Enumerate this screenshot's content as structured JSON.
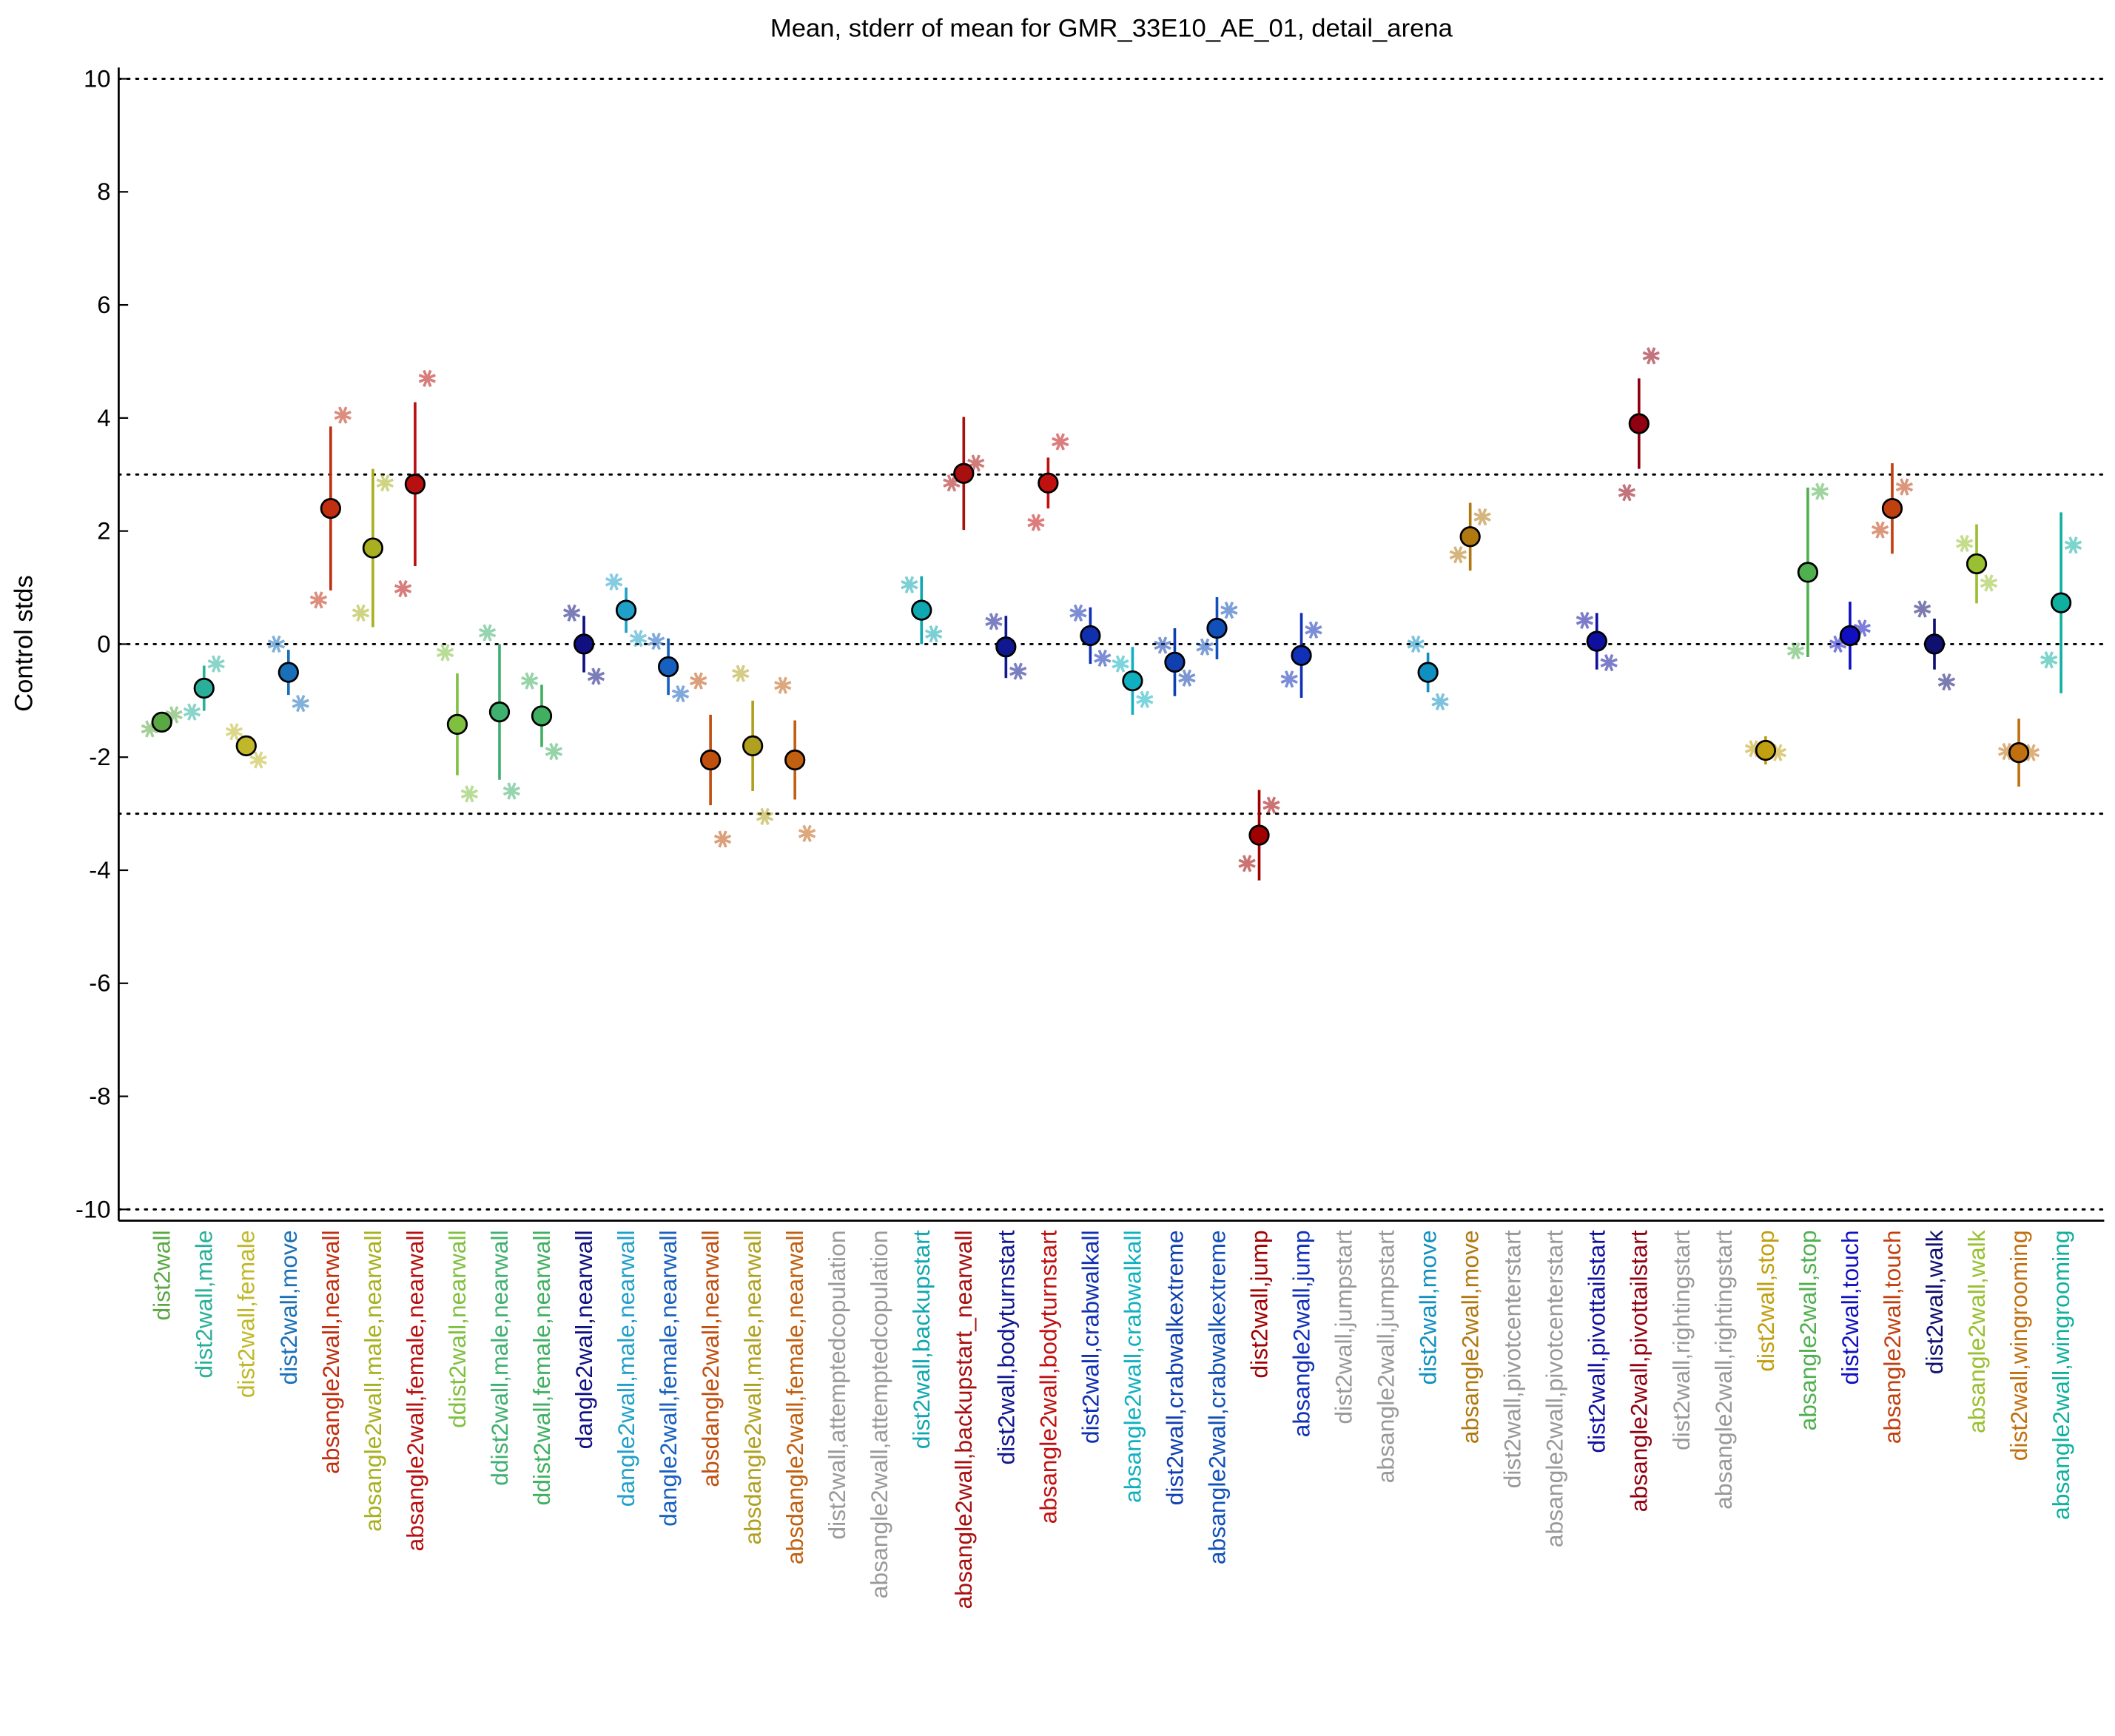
{
  "chart_data": {
    "type": "errorbar",
    "title": "Mean, stderr of mean for GMR_33E10_AE_01, detail_arena",
    "ylabel": "Control stds",
    "categories": [
      "dist2wall",
      "dist2wall,male",
      "dist2wall,female",
      "dist2wall,move",
      "absangle2wall,nearwall",
      "absangle2wall,male,nearwall",
      "absangle2wall,female,nearwall",
      "ddist2wall,nearwall",
      "ddist2wall,male,nearwall",
      "ddist2wall,female,nearwall",
      "dangle2wall,nearwall",
      "dangle2wall,male,nearwall",
      "dangle2wall,female,nearwall",
      "absdangle2wall,nearwall",
      "absdangle2wall,male,nearwall",
      "absdangle2wall,female,nearwall",
      "dist2wall,attemptedcopulation",
      "absangle2wall,attemptedcopulation",
      "dist2wall,backupstart",
      "absangle2wall,backupstart_nearwall",
      "dist2wall,bodyturnstart",
      "absangle2wall,bodyturnstart",
      "dist2wall,crabwalkall",
      "absangle2wall,crabwalkall",
      "dist2wall,crabwalkextreme",
      "absangle2wall,crabwalkextreme",
      "dist2wall,jump",
      "absangle2wall,jump",
      "dist2wall,jumpstart",
      "absangle2wall,jumpstart",
      "dist2wall,move",
      "absangle2wall,move",
      "dist2wall,pivotcenterstart",
      "absangle2wall,pivotcenterstart",
      "dist2wall,pivottailstart",
      "absangle2wall,pivottailstart",
      "dist2wall,rightingstart",
      "absangle2wall,rightingstart",
      "dist2wall,stop",
      "absangle2wall,stop",
      "dist2wall,touch",
      "absangle2wall,touch",
      "dist2wall,walk",
      "absangle2wall,walk",
      "dist2wall,wingrooming",
      "absangle2wall,wingrooming"
    ],
    "colors": [
      "#5aa843",
      "#2ab09a",
      "#c0b82a",
      "#1a70b8",
      "#c03010",
      "#a8b020",
      "#b81010",
      "#80c040",
      "#40b070",
      "#40b060",
      "#101080",
      "#20a0c8",
      "#1860c0",
      "#c05010",
      "#b0a020",
      "#c06010",
      "#999999",
      "#999999",
      "#10a8b0",
      "#a81010",
      "#101890",
      "#c01010",
      "#1030b0",
      "#10b0c0",
      "#1040b0",
      "#1050b8",
      "#a00000",
      "#1030b8",
      "#999999",
      "#999999",
      "#1090c0",
      "#b07810",
      "#999999",
      "#999999",
      "#1010a0",
      "#900010",
      "#999999",
      "#999999",
      "#c0a010",
      "#50b050",
      "#1010c0",
      "#c04010",
      "#101070",
      "#98c030",
      "#c07010",
      "#10b0a0"
    ],
    "values": [
      -1.38,
      -0.78,
      -1.8,
      -0.5,
      2.4,
      1.7,
      2.83,
      -1.42,
      -1.2,
      -1.27,
      0,
      0.6,
      -0.4,
      -2.05,
      -1.8,
      -2.05,
      null,
      null,
      0.6,
      3.02,
      -0.05,
      2.85,
      0.15,
      -0.65,
      -0.32,
      0.28,
      -3.38,
      -0.2,
      null,
      null,
      -0.5,
      1.9,
      null,
      null,
      0.05,
      3.9,
      null,
      null,
      -1.88,
      1.27,
      0.15,
      2.4,
      0,
      1.42,
      -1.92,
      0.73
    ],
    "errors": [
      0.15,
      0.4,
      0.15,
      0.4,
      1.45,
      1.4,
      1.45,
      0.9,
      1.2,
      0.55,
      0.5,
      0.4,
      0.5,
      0.8,
      0.8,
      0.7,
      null,
      null,
      0.6,
      1.0,
      0.55,
      0.45,
      0.5,
      0.6,
      0.6,
      0.55,
      0.8,
      0.75,
      null,
      null,
      0.35,
      0.6,
      null,
      null,
      0.5,
      0.8,
      null,
      null,
      0.25,
      1.5,
      0.6,
      0.8,
      0.45,
      0.7,
      0.6,
      1.6
    ],
    "left_star_values": [
      -1.5,
      -1.2,
      -1.55,
      0,
      0.78,
      0.55,
      0.98,
      -0.15,
      0.2,
      -0.65,
      0.55,
      1.1,
      0.05,
      -0.65,
      -0.52,
      -0.73,
      null,
      null,
      1.05,
      2.85,
      0.4,
      2.15,
      0.55,
      -0.35,
      -0.02,
      -0.05,
      -3.88,
      -0.62,
      null,
      null,
      0,
      1.58,
      null,
      null,
      0.42,
      2.68,
      null,
      null,
      -1.85,
      -0.12,
      0,
      2.02,
      0.62,
      1.78,
      -1.9,
      -0.28
    ],
    "right_star_values": [
      -1.25,
      -0.35,
      -2.05,
      -1.05,
      4.05,
      2.85,
      4.7,
      -2.65,
      -2.6,
      -1.9,
      -0.57,
      0.1,
      -0.88,
      -3.45,
      -3.05,
      -3.35,
      null,
      null,
      0.18,
      3.2,
      -0.48,
      3.58,
      -0.25,
      -0.98,
      -0.6,
      0.6,
      -2.85,
      0.25,
      null,
      null,
      -1.02,
      2.25,
      null,
      null,
      -0.33,
      5.1,
      null,
      null,
      -1.92,
      2.7,
      0.28,
      2.78,
      -0.67,
      1.08,
      -1.92,
      1.75
    ],
    "ylim": [
      -10.2,
      10.2
    ],
    "yticks": [
      -10,
      -8,
      -6,
      -4,
      -2,
      0,
      2,
      4,
      6,
      8,
      10
    ],
    "hlines": [
      -10,
      -3,
      0,
      3,
      10
    ]
  }
}
